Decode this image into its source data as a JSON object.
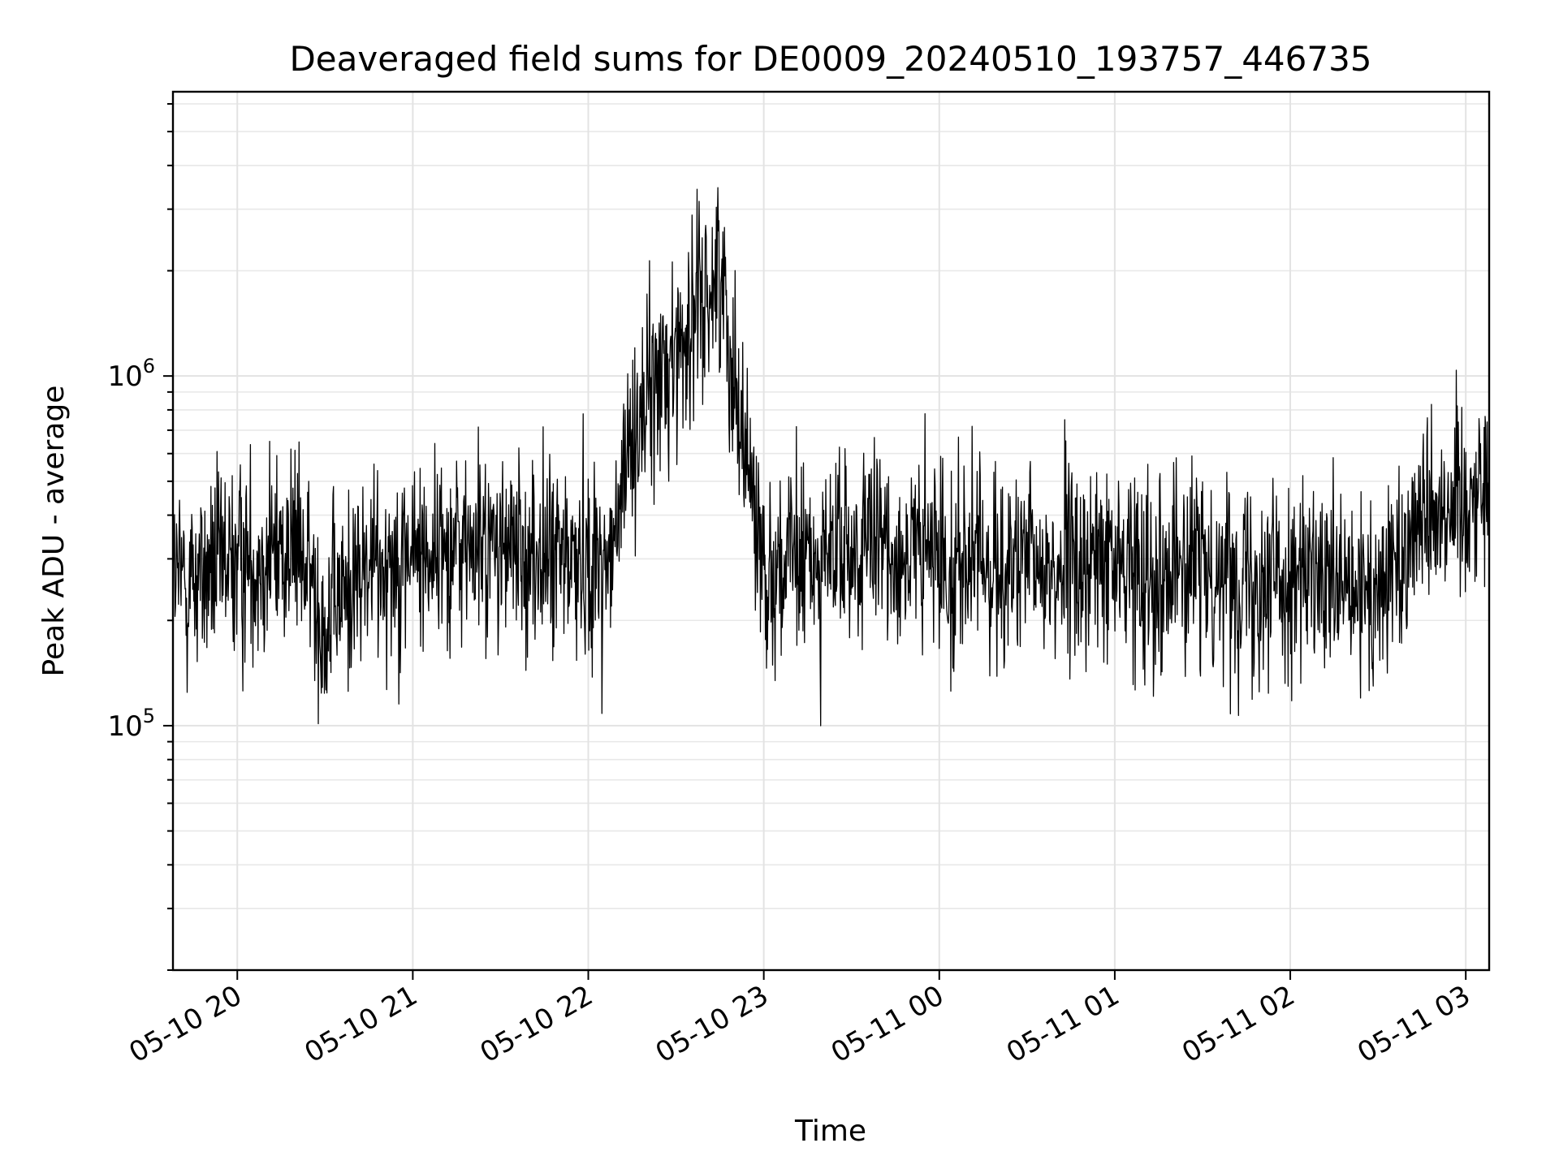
{
  "chart_data": {
    "type": "line",
    "title": "Deaveraged field sums for DE0009_20240510_193757_446735",
    "xlabel": "Time",
    "ylabel": "Peak ADU - average",
    "yscale": "log",
    "ylim": [
      20000,
      6500000
    ],
    "xlim": [
      "2024-05-10 19:38",
      "2024-05-11 03:08"
    ],
    "grid": true,
    "line_color": "#000000",
    "x_ticks": [
      {
        "value": "2024-05-10 20:00",
        "label": "05-10 20"
      },
      {
        "value": "2024-05-10 21:00",
        "label": "05-10 21"
      },
      {
        "value": "2024-05-10 22:00",
        "label": "05-10 22"
      },
      {
        "value": "2024-05-10 23:00",
        "label": "05-10 23"
      },
      {
        "value": "2024-05-11 00:00",
        "label": "05-11 00"
      },
      {
        "value": "2024-05-11 01:00",
        "label": "05-11 01"
      },
      {
        "value": "2024-05-11 02:00",
        "label": "05-11 02"
      },
      {
        "value": "2024-05-11 03:00",
        "label": "05-11 03"
      }
    ],
    "y_ticks": [
      {
        "value": 100000,
        "base": "10",
        "exp": "5"
      },
      {
        "value": 1000000,
        "base": "10",
        "exp": "6"
      }
    ],
    "series": [
      {
        "x": [
          "2024-05-10 19:38",
          "2024-05-10 19:50",
          "2024-05-10 20:05",
          "2024-05-10 20:20",
          "2024-05-10 20:30",
          "2024-05-10 20:40",
          "2024-05-10 20:50",
          "2024-05-10 21:00",
          "2024-05-10 21:15",
          "2024-05-10 21:30",
          "2024-05-10 21:45",
          "2024-05-10 22:00",
          "2024-05-10 22:08",
          "2024-05-10 22:15",
          "2024-05-10 22:25",
          "2024-05-10 22:35",
          "2024-05-10 22:40",
          "2024-05-10 22:45",
          "2024-05-10 23:00",
          "2024-05-10 23:20",
          "2024-05-10 23:40",
          "2024-05-11 00:00",
          "2024-05-11 00:30",
          "2024-05-11 01:00",
          "2024-05-11 01:30",
          "2024-05-11 02:00",
          "2024-05-11 02:20",
          "2024-05-11 02:30",
          "2024-05-11 02:45",
          "2024-05-11 03:00",
          "2024-05-11 03:08"
        ],
        "y": [
          260000,
          270000,
          300000,
          330000,
          200000,
          260000,
          300000,
          310000,
          330000,
          320000,
          300000,
          300000,
          290000,
          700000,
          1000000,
          1400000,
          1700000,
          2000000,
          280000,
          300000,
          320000,
          300000,
          280000,
          290000,
          280000,
          270000,
          230000,
          230000,
          420000,
          450000,
          500000
        ]
      }
    ]
  }
}
